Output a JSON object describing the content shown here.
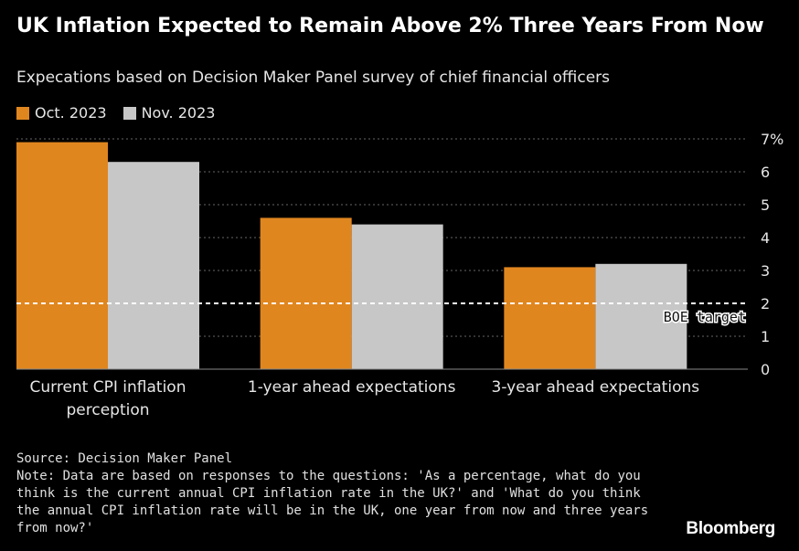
{
  "title": "UK Inflation Expected to Remain Above 2% Three Years From Now",
  "subtitle": "Expecations based on Decision Maker Panel survey of chief financial officers",
  "footer": {
    "source": "Source: Decision Maker Panel",
    "note": "Note: Data are based on responses to the questions: 'As a percentage, what do you think is the current annual CPI inflation rate in the UK?' and 'What do you think the annual CPI inflation rate will be in the UK, one year from now and three years from now?'"
  },
  "brand": "Bloomberg",
  "colors": {
    "oct": "#e0861f",
    "nov": "#c7c7c7",
    "background": "#000000",
    "grid": "#666666"
  },
  "chart_data": {
    "type": "bar",
    "categories": [
      "Current CPI inflation perception",
      "1-year ahead expectations",
      "3-year ahead expectations"
    ],
    "category_label_lines": [
      [
        "Current CPI inflation",
        "perception"
      ],
      [
        "1-year ahead expectations"
      ],
      [
        "3-year ahead expectations"
      ]
    ],
    "series": [
      {
        "name": "Oct. 2023",
        "values": [
          6.9,
          4.6,
          3.1
        ]
      },
      {
        "name": "Nov. 2023",
        "values": [
          6.3,
          4.4,
          3.2
        ]
      }
    ],
    "ylim": [
      0,
      7
    ],
    "yticks": [
      "0",
      "1",
      "2",
      "3",
      "4",
      "5",
      "6",
      "7%"
    ],
    "ytick_values": [
      0,
      1,
      2,
      3,
      4,
      5,
      6,
      7
    ],
    "reference_line": {
      "value": 2,
      "label": "BOE target",
      "style": "dashed"
    },
    "grid": true,
    "legend_position": "top-left",
    "ylabel": "",
    "xlabel": ""
  }
}
